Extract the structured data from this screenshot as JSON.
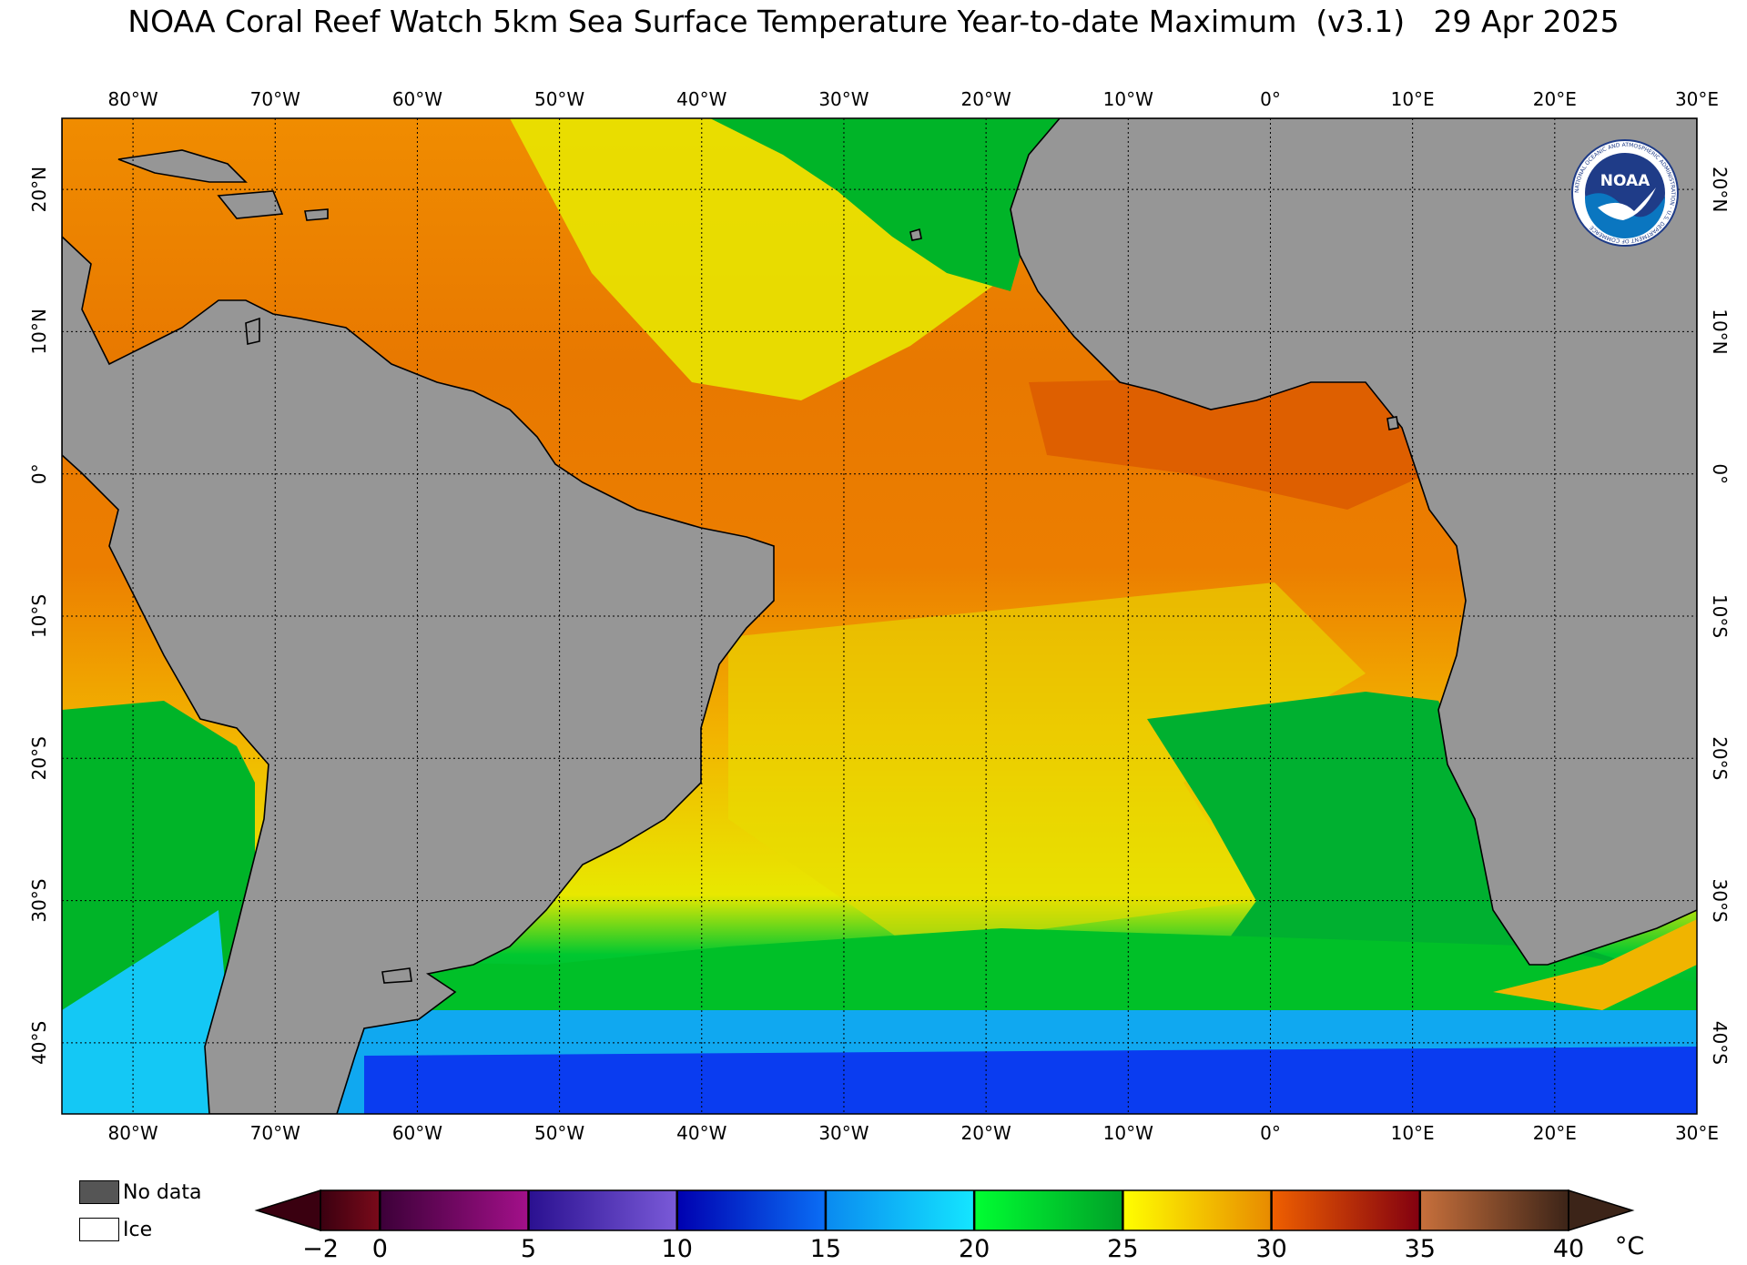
{
  "title": "NOAA Coral Reef Watch 5km Sea Surface Temperature Year-to-date Maximum  (v3.1)   29 Apr 2025",
  "map": {
    "lon_labels": [
      "80°W",
      "70°W",
      "60°W",
      "50°W",
      "40°W",
      "30°W",
      "20°W",
      "10°W",
      "0°",
      "10°E",
      "20°E",
      "30°E"
    ],
    "lon_values": [
      -80,
      -70,
      -60,
      -50,
      -40,
      -30,
      -20,
      -10,
      0,
      10,
      20,
      30
    ],
    "lat_labels": [
      "20°N",
      "10°N",
      "0°",
      "10°S",
      "20°S",
      "30°S",
      "40°S"
    ],
    "lat_values": [
      20,
      10,
      0,
      -10,
      -20,
      -30,
      -40
    ],
    "extent": {
      "lon_min": -85,
      "lon_max": 30,
      "lat_min": -45,
      "lat_max": 25
    },
    "land_color": "#969696",
    "gridlines": "dotted"
  },
  "logo": {
    "text": "NOAA",
    "ring_text": "NATIONAL OCEANIC AND ATMOSPHERIC ADMINISTRATION · U.S. DEPARTMENT OF COMMERCE",
    "colors": [
      "#1f3c88",
      "#0a76c0"
    ]
  },
  "legend": {
    "nodata_label": "No data",
    "ice_label": "Ice",
    "colors": {
      "nodata": "#555555",
      "ice": "#ffffff"
    }
  },
  "colorbar": {
    "unit": "°C",
    "tick_labels": [
      "−2",
      "0",
      "5",
      "10",
      "15",
      "20",
      "25",
      "30",
      "35",
      "40"
    ],
    "tick_values": [
      -2,
      0,
      5,
      10,
      15,
      20,
      25,
      30,
      35,
      40
    ],
    "segments": [
      {
        "from": -2,
        "to": 0,
        "colors": [
          "#3a0010",
          "#7a0a1a"
        ]
      },
      {
        "from": 0,
        "to": 5,
        "colors": [
          "#3c0038",
          "#a3108a"
        ]
      },
      {
        "from": 5,
        "to": 10,
        "colors": [
          "#2a1090",
          "#7a5ad8"
        ]
      },
      {
        "from": 10,
        "to": 15,
        "colors": [
          "#0000b0",
          "#0a6ef5"
        ]
      },
      {
        "from": 15,
        "to": 20,
        "colors": [
          "#0a8af0",
          "#14e6ff"
        ]
      },
      {
        "from": 20,
        "to": 25,
        "colors": [
          "#00ff32",
          "#00a028"
        ]
      },
      {
        "from": 25,
        "to": 30,
        "colors": [
          "#ffff00",
          "#e88a00"
        ]
      },
      {
        "from": 30,
        "to": 35,
        "colors": [
          "#f06000",
          "#820010"
        ]
      },
      {
        "from": 35,
        "to": 40,
        "colors": [
          "#c8703c",
          "#3c2418"
        ]
      }
    ],
    "under_color": "#3a0010",
    "over_color": "#3c2418"
  }
}
